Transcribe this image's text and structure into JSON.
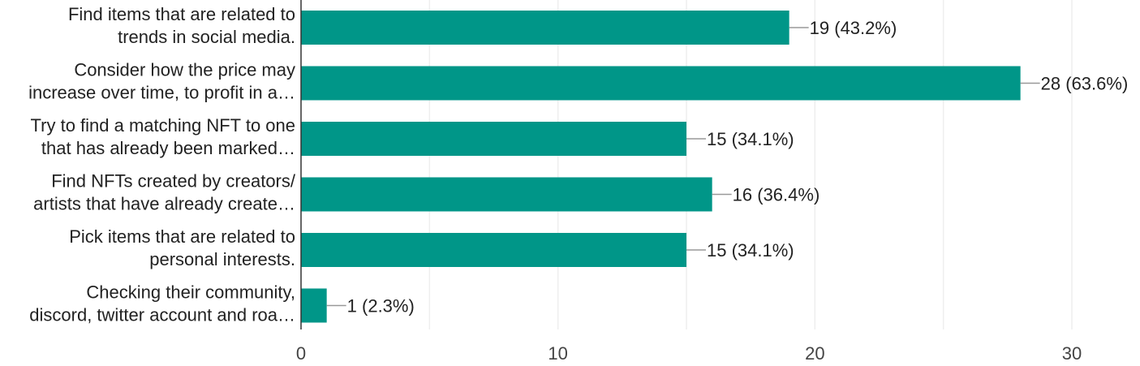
{
  "chart_data": {
    "type": "bar",
    "orientation": "horizontal",
    "categories": [
      [
        "Find items that are related to",
        "trends in social media."
      ],
      [
        "Consider how the price may",
        "increase over time, to profit in a…"
      ],
      [
        "Try to find a matching NFT to one",
        "that has already been marked…"
      ],
      [
        "Find NFTs created by creators/",
        "artists that have already create…"
      ],
      [
        "Pick items that are related to",
        "personal interests."
      ],
      [
        "Checking their community,",
        "discord, twitter account and roa…"
      ]
    ],
    "values": [
      19,
      28,
      15,
      16,
      15,
      1
    ],
    "data_labels": [
      "19 (43.2%)",
      "28 (63.6%)",
      "15 (34.1%)",
      "16 (36.4%)",
      "15 (34.1%)",
      "1 (2.3%)"
    ],
    "xlim": [
      0,
      30
    ],
    "x_ticks": [
      "0",
      "10",
      "20",
      "30"
    ],
    "grid": true,
    "bar_color": "#009688",
    "grid_color": "#eeeeee",
    "axis_color": "#333333"
  }
}
